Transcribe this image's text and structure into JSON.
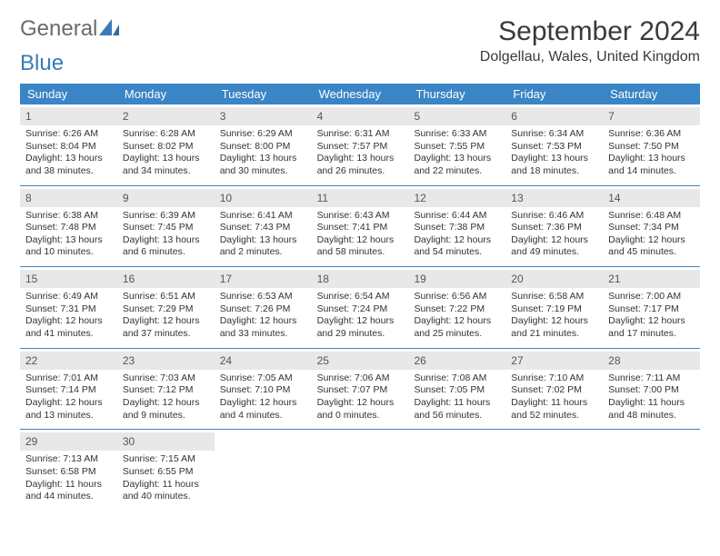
{
  "logo": {
    "text1": "General",
    "text2": "Blue"
  },
  "title": "September 2024",
  "location": "Dolgellau, Wales, United Kingdom",
  "colors": {
    "header_bg": "#3a85c6",
    "header_text": "#ffffff",
    "daynum_bg": "#e8e8e8",
    "border": "#3a85c6",
    "logo_gray": "#6a6a6a",
    "logo_blue": "#3a7ab8"
  },
  "day_headers": [
    "Sunday",
    "Monday",
    "Tuesday",
    "Wednesday",
    "Thursday",
    "Friday",
    "Saturday"
  ],
  "weeks": [
    [
      {
        "n": "1",
        "sr": "Sunrise: 6:26 AM",
        "ss": "Sunset: 8:04 PM",
        "d1": "Daylight: 13 hours",
        "d2": "and 38 minutes."
      },
      {
        "n": "2",
        "sr": "Sunrise: 6:28 AM",
        "ss": "Sunset: 8:02 PM",
        "d1": "Daylight: 13 hours",
        "d2": "and 34 minutes."
      },
      {
        "n": "3",
        "sr": "Sunrise: 6:29 AM",
        "ss": "Sunset: 8:00 PM",
        "d1": "Daylight: 13 hours",
        "d2": "and 30 minutes."
      },
      {
        "n": "4",
        "sr": "Sunrise: 6:31 AM",
        "ss": "Sunset: 7:57 PM",
        "d1": "Daylight: 13 hours",
        "d2": "and 26 minutes."
      },
      {
        "n": "5",
        "sr": "Sunrise: 6:33 AM",
        "ss": "Sunset: 7:55 PM",
        "d1": "Daylight: 13 hours",
        "d2": "and 22 minutes."
      },
      {
        "n": "6",
        "sr": "Sunrise: 6:34 AM",
        "ss": "Sunset: 7:53 PM",
        "d1": "Daylight: 13 hours",
        "d2": "and 18 minutes."
      },
      {
        "n": "7",
        "sr": "Sunrise: 6:36 AM",
        "ss": "Sunset: 7:50 PM",
        "d1": "Daylight: 13 hours",
        "d2": "and 14 minutes."
      }
    ],
    [
      {
        "n": "8",
        "sr": "Sunrise: 6:38 AM",
        "ss": "Sunset: 7:48 PM",
        "d1": "Daylight: 13 hours",
        "d2": "and 10 minutes."
      },
      {
        "n": "9",
        "sr": "Sunrise: 6:39 AM",
        "ss": "Sunset: 7:45 PM",
        "d1": "Daylight: 13 hours",
        "d2": "and 6 minutes."
      },
      {
        "n": "10",
        "sr": "Sunrise: 6:41 AM",
        "ss": "Sunset: 7:43 PM",
        "d1": "Daylight: 13 hours",
        "d2": "and 2 minutes."
      },
      {
        "n": "11",
        "sr": "Sunrise: 6:43 AM",
        "ss": "Sunset: 7:41 PM",
        "d1": "Daylight: 12 hours",
        "d2": "and 58 minutes."
      },
      {
        "n": "12",
        "sr": "Sunrise: 6:44 AM",
        "ss": "Sunset: 7:38 PM",
        "d1": "Daylight: 12 hours",
        "d2": "and 54 minutes."
      },
      {
        "n": "13",
        "sr": "Sunrise: 6:46 AM",
        "ss": "Sunset: 7:36 PM",
        "d1": "Daylight: 12 hours",
        "d2": "and 49 minutes."
      },
      {
        "n": "14",
        "sr": "Sunrise: 6:48 AM",
        "ss": "Sunset: 7:34 PM",
        "d1": "Daylight: 12 hours",
        "d2": "and 45 minutes."
      }
    ],
    [
      {
        "n": "15",
        "sr": "Sunrise: 6:49 AM",
        "ss": "Sunset: 7:31 PM",
        "d1": "Daylight: 12 hours",
        "d2": "and 41 minutes."
      },
      {
        "n": "16",
        "sr": "Sunrise: 6:51 AM",
        "ss": "Sunset: 7:29 PM",
        "d1": "Daylight: 12 hours",
        "d2": "and 37 minutes."
      },
      {
        "n": "17",
        "sr": "Sunrise: 6:53 AM",
        "ss": "Sunset: 7:26 PM",
        "d1": "Daylight: 12 hours",
        "d2": "and 33 minutes."
      },
      {
        "n": "18",
        "sr": "Sunrise: 6:54 AM",
        "ss": "Sunset: 7:24 PM",
        "d1": "Daylight: 12 hours",
        "d2": "and 29 minutes."
      },
      {
        "n": "19",
        "sr": "Sunrise: 6:56 AM",
        "ss": "Sunset: 7:22 PM",
        "d1": "Daylight: 12 hours",
        "d2": "and 25 minutes."
      },
      {
        "n": "20",
        "sr": "Sunrise: 6:58 AM",
        "ss": "Sunset: 7:19 PM",
        "d1": "Daylight: 12 hours",
        "d2": "and 21 minutes."
      },
      {
        "n": "21",
        "sr": "Sunrise: 7:00 AM",
        "ss": "Sunset: 7:17 PM",
        "d1": "Daylight: 12 hours",
        "d2": "and 17 minutes."
      }
    ],
    [
      {
        "n": "22",
        "sr": "Sunrise: 7:01 AM",
        "ss": "Sunset: 7:14 PM",
        "d1": "Daylight: 12 hours",
        "d2": "and 13 minutes."
      },
      {
        "n": "23",
        "sr": "Sunrise: 7:03 AM",
        "ss": "Sunset: 7:12 PM",
        "d1": "Daylight: 12 hours",
        "d2": "and 9 minutes."
      },
      {
        "n": "24",
        "sr": "Sunrise: 7:05 AM",
        "ss": "Sunset: 7:10 PM",
        "d1": "Daylight: 12 hours",
        "d2": "and 4 minutes."
      },
      {
        "n": "25",
        "sr": "Sunrise: 7:06 AM",
        "ss": "Sunset: 7:07 PM",
        "d1": "Daylight: 12 hours",
        "d2": "and 0 minutes."
      },
      {
        "n": "26",
        "sr": "Sunrise: 7:08 AM",
        "ss": "Sunset: 7:05 PM",
        "d1": "Daylight: 11 hours",
        "d2": "and 56 minutes."
      },
      {
        "n": "27",
        "sr": "Sunrise: 7:10 AM",
        "ss": "Sunset: 7:02 PM",
        "d1": "Daylight: 11 hours",
        "d2": "and 52 minutes."
      },
      {
        "n": "28",
        "sr": "Sunrise: 7:11 AM",
        "ss": "Sunset: 7:00 PM",
        "d1": "Daylight: 11 hours",
        "d2": "and 48 minutes."
      }
    ],
    [
      {
        "n": "29",
        "sr": "Sunrise: 7:13 AM",
        "ss": "Sunset: 6:58 PM",
        "d1": "Daylight: 11 hours",
        "d2": "and 44 minutes."
      },
      {
        "n": "30",
        "sr": "Sunrise: 7:15 AM",
        "ss": "Sunset: 6:55 PM",
        "d1": "Daylight: 11 hours",
        "d2": "and 40 minutes."
      },
      {
        "empty": true
      },
      {
        "empty": true
      },
      {
        "empty": true
      },
      {
        "empty": true
      },
      {
        "empty": true
      }
    ]
  ]
}
